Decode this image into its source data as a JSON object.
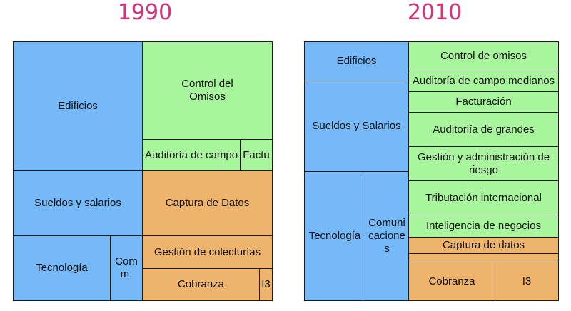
{
  "colors": {
    "title": "#d6327a",
    "blue": "#75b9f9",
    "green": "#a9f59e",
    "orange": "#eeb46c",
    "border": "#1a1a1a"
  },
  "left": {
    "year": "1990",
    "cells": {
      "edificios": "Edificios",
      "control": "Control del\nOmisos",
      "auditoria": "Auditoría de campo",
      "factu": "Factu",
      "sueldos": "Sueldos y salarios",
      "captura": "Captura de Datos",
      "tecnologia": "Tecnología",
      "comm": "Com\nm.",
      "gestion": "Gestión de colecturías",
      "cobranza": "Cobranza",
      "i3": "I3"
    }
  },
  "right": {
    "year": "2010",
    "cells": {
      "edificios": "Edificios",
      "sueldos": "Sueldos y Salarios",
      "tecnologia": "Tecnología",
      "comunicaciones": "Comuni\ncacione\ns",
      "control": "Control de omisos",
      "auditoria_medianos": "Auditoría de campo medianos",
      "facturacion": "Facturación",
      "auditoria_grandes": "Auditoriía de grandes",
      "gestion_riesgo": "Gestión y administración de\nriesgo",
      "tributacion": "Tributación internacional",
      "inteligencia": "Inteligencia de negocios",
      "captura": "Captura de datos",
      "cobranza": "Cobranza",
      "i3": "I3"
    }
  }
}
